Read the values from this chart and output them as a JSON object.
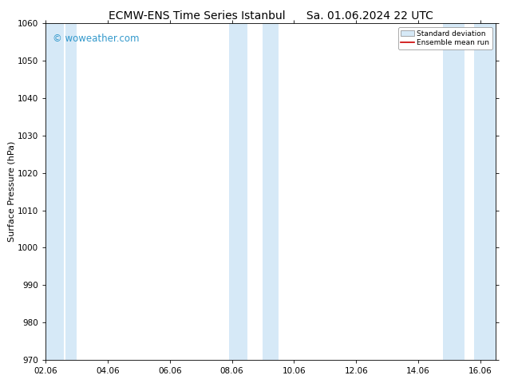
{
  "title": "ECMW-ENS Time Series Istanbul",
  "title2": "Sa. 01.06.2024 22 UTC",
  "ylabel": "Surface Pressure (hPa)",
  "ylim": [
    970,
    1060
  ],
  "yticks": [
    970,
    980,
    990,
    1000,
    1010,
    1020,
    1030,
    1040,
    1050,
    1060
  ],
  "xlim_start": 0.0,
  "xlim_end": 14.5,
  "xtick_labels": [
    "02.06",
    "04.06",
    "06.06",
    "08.06",
    "10.06",
    "12.06",
    "14.06",
    "16.06"
  ],
  "xtick_positions": [
    0.0,
    2.0,
    4.0,
    6.0,
    8.0,
    10.0,
    12.0,
    14.0
  ],
  "shaded_bands": [
    {
      "x_start": 0.0,
      "x_end": 0.6,
      "color": "#d6e9f7"
    },
    {
      "x_start": 0.65,
      "x_end": 1.0,
      "color": "#d6e9f7"
    },
    {
      "x_start": 5.9,
      "x_end": 6.5,
      "color": "#d6e9f7"
    },
    {
      "x_start": 7.0,
      "x_end": 7.5,
      "color": "#d6e9f7"
    },
    {
      "x_start": 12.8,
      "x_end": 13.5,
      "color": "#d6e9f7"
    },
    {
      "x_start": 13.8,
      "x_end": 14.5,
      "color": "#d6e9f7"
    }
  ],
  "watermark_text": "© woweather.com",
  "watermark_color": "#3399cc",
  "legend_std_label": "Standard deviation",
  "legend_mean_label": "Ensemble mean run",
  "legend_std_color": "#d6e9f7",
  "legend_mean_color": "#cc0000",
  "bg_color": "#ffffff",
  "title_fontsize": 10,
  "ylabel_fontsize": 8,
  "tick_fontsize": 7.5
}
